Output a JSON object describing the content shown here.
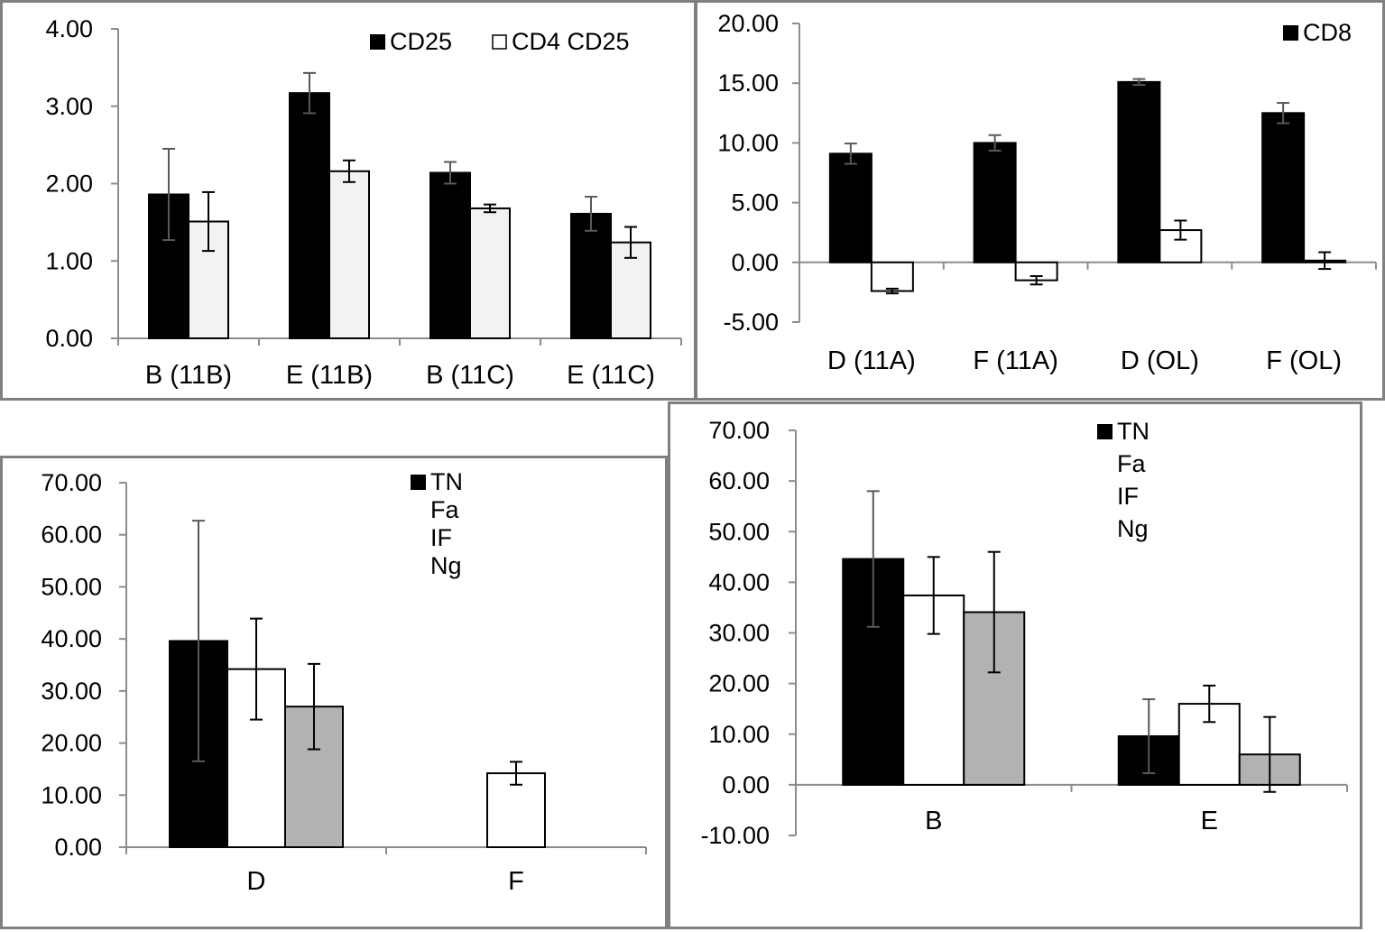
{
  "chart_data": [
    {
      "type": "bar",
      "categories": [
        "B (11B)",
        "E (11B)",
        "B (11C)",
        "E (11C)"
      ],
      "ylim": [
        0,
        4
      ],
      "yticks": [
        "0.00",
        "1.00",
        "2.00",
        "3.00",
        "4.00"
      ],
      "series": [
        {
          "name": "CD25",
          "color": "#000000",
          "values": [
            1.86,
            3.17,
            2.14,
            1.61
          ],
          "errors": [
            0.59,
            0.26,
            0.14,
            0.22
          ]
        },
        {
          "name": "CD4 CD25",
          "color": "#f2f2f2",
          "values": [
            1.51,
            2.16,
            1.68,
            1.24
          ],
          "errors": [
            0.38,
            0.14,
            0.05,
            0.2
          ]
        }
      ],
      "legend_position": "top-right"
    },
    {
      "type": "bar",
      "categories": [
        "D (11A)",
        "F (11A)",
        "D  (OL)",
        "F (OL)"
      ],
      "ylim": [
        -5,
        20
      ],
      "yticks": [
        "-5.00",
        "0.00",
        "5.00",
        "10.00",
        "15.00",
        "20.00"
      ],
      "series": [
        {
          "name": "CD8",
          "color": "#000000",
          "values": [
            9.1,
            10.0,
            15.1,
            12.5
          ],
          "errors": [
            0.85,
            0.65,
            0.25,
            0.85
          ]
        },
        {
          "name": "",
          "color": "#ffffff",
          "values": [
            -2.4,
            -1.5,
            2.7,
            0.15
          ],
          "errors": [
            0.2,
            0.35,
            0.8,
            0.7
          ]
        }
      ],
      "legend_position": "top-right"
    },
    {
      "type": "bar",
      "categories": [
        "D",
        "F"
      ],
      "ylim": [
        0,
        70
      ],
      "yticks": [
        "0.00",
        "10.00",
        "20.00",
        "30.00",
        "40.00",
        "50.00",
        "60.00",
        "70.00"
      ],
      "series": [
        {
          "name": "TN",
          "color": "#000000",
          "values": [
            39.6,
            null
          ],
          "errors": [
            23.1,
            null
          ]
        },
        {
          "name": "Fa",
          "color": "#ffffff",
          "values": [
            34.2,
            14.2
          ],
          "errors": [
            9.7,
            2.2
          ]
        },
        {
          "name": "IF",
          "color": "#b2b2b2",
          "values": [
            27.0,
            null
          ],
          "errors": [
            8.2,
            null
          ]
        },
        {
          "name": "Ng",
          "color": "#ffffff",
          "values": [
            null,
            null
          ],
          "errors": [
            null,
            null
          ]
        }
      ],
      "legend_position": "top-right"
    },
    {
      "type": "bar",
      "categories": [
        "B",
        "E"
      ],
      "ylim": [
        -10,
        70
      ],
      "yticks": [
        "-10.00",
        "0.00",
        "10.00",
        "20.00",
        "30.00",
        "40.00",
        "50.00",
        "60.00",
        "70.00"
      ],
      "series": [
        {
          "name": "TN",
          "color": "#000000",
          "values": [
            44.6,
            9.6
          ],
          "errors": [
            13.4,
            7.3
          ]
        },
        {
          "name": "Fa",
          "color": "#ffffff",
          "values": [
            37.4,
            16.0
          ],
          "errors": [
            7.6,
            3.6
          ]
        },
        {
          "name": "IF",
          "color": "#b2b2b2",
          "values": [
            34.1,
            6.0
          ],
          "errors": [
            11.9,
            7.4
          ]
        },
        {
          "name": "Ng",
          "color": "#ffffff",
          "values": [
            null,
            null
          ],
          "errors": [
            null,
            null
          ]
        }
      ],
      "legend_position": "top-right"
    }
  ]
}
